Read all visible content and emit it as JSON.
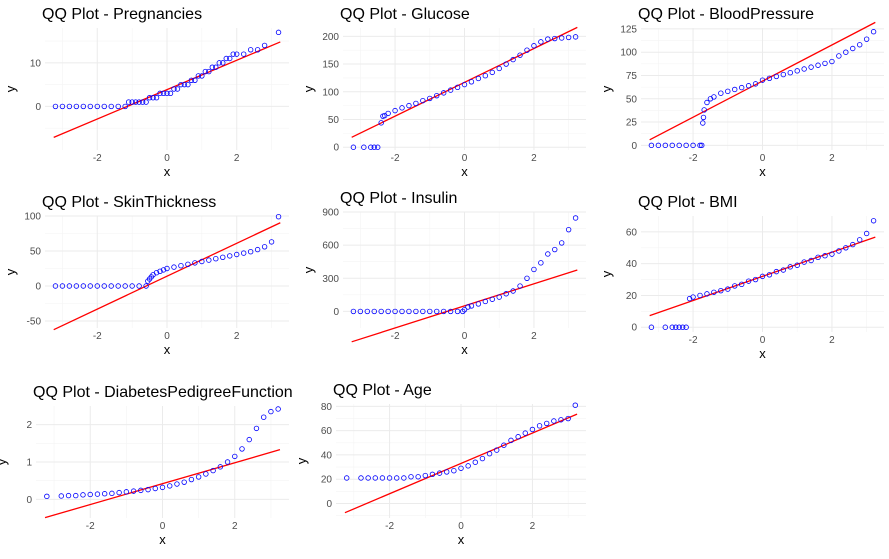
{
  "chart_data": [
    {
      "type": "scatter",
      "title": "QQ Plot - Pregnancies",
      "xlabel": "x",
      "ylabel": "y",
      "xlim": [
        -3.5,
        3.5
      ],
      "ylim": [
        -10,
        18
      ],
      "xticks": [
        -2,
        0,
        2
      ],
      "yticks": [
        0,
        10
      ],
      "line": {
        "slope": 3.37,
        "intercept": 3.85
      },
      "points": [
        [
          -3.2,
          0
        ],
        [
          -3.0,
          0
        ],
        [
          -2.8,
          0
        ],
        [
          -2.6,
          0
        ],
        [
          -2.4,
          0
        ],
        [
          -2.2,
          0
        ],
        [
          -2.0,
          0
        ],
        [
          -1.8,
          0
        ],
        [
          -1.6,
          0
        ],
        [
          -1.4,
          0
        ],
        [
          -1.2,
          0
        ],
        [
          -1.1,
          1
        ],
        [
          -1.0,
          1
        ],
        [
          -0.9,
          1
        ],
        [
          -0.8,
          1
        ],
        [
          -0.7,
          1
        ],
        [
          -0.6,
          1
        ],
        [
          -0.5,
          2
        ],
        [
          -0.4,
          2
        ],
        [
          -0.3,
          2
        ],
        [
          -0.2,
          3
        ],
        [
          -0.1,
          3
        ],
        [
          0.0,
          3
        ],
        [
          0.1,
          3
        ],
        [
          0.2,
          4
        ],
        [
          0.3,
          4
        ],
        [
          0.4,
          5
        ],
        [
          0.5,
          5
        ],
        [
          0.6,
          5
        ],
        [
          0.7,
          6
        ],
        [
          0.8,
          6
        ],
        [
          0.9,
          7
        ],
        [
          1.0,
          7
        ],
        [
          1.1,
          8
        ],
        [
          1.2,
          8
        ],
        [
          1.3,
          9
        ],
        [
          1.4,
          9
        ],
        [
          1.5,
          10
        ],
        [
          1.6,
          10
        ],
        [
          1.7,
          11
        ],
        [
          1.8,
          11
        ],
        [
          1.9,
          12
        ],
        [
          2.0,
          12
        ],
        [
          2.2,
          12
        ],
        [
          2.4,
          13
        ],
        [
          2.6,
          13
        ],
        [
          2.8,
          14
        ],
        [
          3.2,
          17
        ]
      ]
    },
    {
      "type": "scatter",
      "title": "QQ Plot - Glucose",
      "xlabel": "x",
      "ylabel": "y",
      "xlim": [
        -3.5,
        3.5
      ],
      "ylim": [
        -5,
        215
      ],
      "xticks": [
        -2,
        0,
        2
      ],
      "yticks": [
        0,
        50,
        100,
        150,
        200
      ],
      "line": {
        "slope": 30.5,
        "intercept": 117
      },
      "points": [
        [
          -3.2,
          0
        ],
        [
          -2.9,
          0
        ],
        [
          -2.7,
          0
        ],
        [
          -2.6,
          0
        ],
        [
          -2.5,
          0
        ],
        [
          -2.4,
          44
        ],
        [
          -2.35,
          56
        ],
        [
          -2.3,
          57
        ],
        [
          -2.2,
          61
        ],
        [
          -2.0,
          66
        ],
        [
          -1.8,
          71
        ],
        [
          -1.6,
          75
        ],
        [
          -1.4,
          79
        ],
        [
          -1.2,
          84
        ],
        [
          -1.0,
          88
        ],
        [
          -0.8,
          93
        ],
        [
          -0.6,
          98
        ],
        [
          -0.4,
          103
        ],
        [
          -0.2,
          108
        ],
        [
          0.0,
          113
        ],
        [
          0.2,
          118
        ],
        [
          0.4,
          124
        ],
        [
          0.6,
          129
        ],
        [
          0.8,
          135
        ],
        [
          1.0,
          142
        ],
        [
          1.2,
          150
        ],
        [
          1.4,
          158
        ],
        [
          1.6,
          166
        ],
        [
          1.8,
          175
        ],
        [
          2.0,
          183
        ],
        [
          2.2,
          190
        ],
        [
          2.4,
          195
        ],
        [
          2.6,
          196
        ],
        [
          2.8,
          197
        ],
        [
          3.0,
          198
        ],
        [
          3.2,
          199
        ]
      ]
    },
    {
      "type": "scatter",
      "title": "QQ Plot - BloodPressure",
      "xlabel": "x",
      "ylabel": "y",
      "xlim": [
        -3.5,
        3.5
      ],
      "ylim": [
        -5,
        126
      ],
      "xticks": [
        -2,
        0,
        2
      ],
      "yticks": [
        0,
        25,
        50,
        75,
        100,
        125
      ],
      "line": {
        "slope": 19.4,
        "intercept": 69
      },
      "points": [
        [
          -3.2,
          0
        ],
        [
          -3.0,
          0
        ],
        [
          -2.8,
          0
        ],
        [
          -2.6,
          0
        ],
        [
          -2.4,
          0
        ],
        [
          -2.2,
          0
        ],
        [
          -2.0,
          0
        ],
        [
          -1.8,
          0
        ],
        [
          -1.75,
          0
        ],
        [
          -1.72,
          24
        ],
        [
          -1.7,
          30
        ],
        [
          -1.68,
          38
        ],
        [
          -1.6,
          46
        ],
        [
          -1.5,
          50
        ],
        [
          -1.4,
          52
        ],
        [
          -1.2,
          56
        ],
        [
          -1.0,
          58
        ],
        [
          -0.8,
          60
        ],
        [
          -0.6,
          62
        ],
        [
          -0.4,
          64
        ],
        [
          -0.2,
          66
        ],
        [
          0.0,
          70
        ],
        [
          0.2,
          72
        ],
        [
          0.4,
          74
        ],
        [
          0.6,
          76
        ],
        [
          0.8,
          78
        ],
        [
          1.0,
          80
        ],
        [
          1.2,
          82
        ],
        [
          1.4,
          84
        ],
        [
          1.6,
          86
        ],
        [
          1.8,
          88
        ],
        [
          2.0,
          90
        ],
        [
          2.2,
          96
        ],
        [
          2.4,
          100
        ],
        [
          2.6,
          104
        ],
        [
          2.8,
          108
        ],
        [
          3.0,
          114
        ],
        [
          3.2,
          122
        ]
      ]
    },
    {
      "type": "scatter",
      "title": "QQ Plot - SkinThickness",
      "xlabel": "x",
      "ylabel": "y",
      "xlim": [
        -3.5,
        3.5
      ],
      "ylim": [
        -60,
        100
      ],
      "xticks": [
        -2,
        0,
        2
      ],
      "yticks": [
        -50,
        0,
        50,
        100
      ],
      "line": {
        "slope": 23.5,
        "intercept": 14
      },
      "points": [
        [
          -3.2,
          0
        ],
        [
          -3.0,
          0
        ],
        [
          -2.8,
          0
        ],
        [
          -2.6,
          0
        ],
        [
          -2.4,
          0
        ],
        [
          -2.2,
          0
        ],
        [
          -2.0,
          0
        ],
        [
          -1.8,
          0
        ],
        [
          -1.6,
          0
        ],
        [
          -1.4,
          0
        ],
        [
          -1.2,
          0
        ],
        [
          -1.0,
          0
        ],
        [
          -0.8,
          0
        ],
        [
          -0.6,
          0
        ],
        [
          -0.55,
          7
        ],
        [
          -0.5,
          10
        ],
        [
          -0.45,
          13
        ],
        [
          -0.4,
          16
        ],
        [
          -0.3,
          19
        ],
        [
          -0.2,
          21
        ],
        [
          -0.1,
          23
        ],
        [
          0.0,
          25
        ],
        [
          0.2,
          27
        ],
        [
          0.4,
          29
        ],
        [
          0.6,
          31
        ],
        [
          0.8,
          33
        ],
        [
          1.0,
          35
        ],
        [
          1.2,
          37
        ],
        [
          1.4,
          39
        ],
        [
          1.6,
          41
        ],
        [
          1.8,
          43
        ],
        [
          2.0,
          45
        ],
        [
          2.2,
          47
        ],
        [
          2.4,
          49
        ],
        [
          2.6,
          52
        ],
        [
          2.8,
          56
        ],
        [
          3.0,
          63
        ],
        [
          3.2,
          99
        ]
      ]
    },
    {
      "type": "scatter",
      "title": "QQ Plot - Insulin",
      "xlabel": "x",
      "ylabel": "y",
      "xlim": [
        -3.5,
        3.5
      ],
      "ylim": [
        -150,
        900
      ],
      "xticks": [
        -2,
        0,
        2
      ],
      "yticks": [
        0,
        300,
        600,
        900
      ],
      "line": {
        "slope": 100,
        "intercept": 50
      },
      "points": [
        [
          -3.2,
          0
        ],
        [
          -3.0,
          0
        ],
        [
          -2.8,
          0
        ],
        [
          -2.6,
          0
        ],
        [
          -2.4,
          0
        ],
        [
          -2.2,
          0
        ],
        [
          -2.0,
          0
        ],
        [
          -1.8,
          0
        ],
        [
          -1.6,
          0
        ],
        [
          -1.4,
          0
        ],
        [
          -1.2,
          0
        ],
        [
          -1.0,
          0
        ],
        [
          -0.8,
          0
        ],
        [
          -0.6,
          0
        ],
        [
          -0.4,
          0
        ],
        [
          -0.2,
          0
        ],
        [
          -0.05,
          0
        ],
        [
          0.0,
          15
        ],
        [
          0.1,
          40
        ],
        [
          0.2,
          50
        ],
        [
          0.4,
          68
        ],
        [
          0.6,
          90
        ],
        [
          0.8,
          110
        ],
        [
          1.0,
          130
        ],
        [
          1.2,
          160
        ],
        [
          1.4,
          185
        ],
        [
          1.6,
          230
        ],
        [
          1.8,
          300
        ],
        [
          2.0,
          380
        ],
        [
          2.2,
          440
        ],
        [
          2.4,
          520
        ],
        [
          2.6,
          560
        ],
        [
          2.8,
          620
        ],
        [
          3.0,
          740
        ],
        [
          3.2,
          846
        ]
      ]
    },
    {
      "type": "scatter",
      "title": "QQ Plot - BMI",
      "xlabel": "x",
      "ylabel": "y",
      "xlim": [
        -3.5,
        3.5
      ],
      "ylim": [
        -3,
        70
      ],
      "xticks": [
        -2,
        0,
        2
      ],
      "yticks": [
        0,
        20,
        40,
        60
      ],
      "line": {
        "slope": 7.6,
        "intercept": 32
      },
      "points": [
        [
          -3.2,
          0
        ],
        [
          -2.8,
          0
        ],
        [
          -2.6,
          0
        ],
        [
          -2.5,
          0
        ],
        [
          -2.4,
          0
        ],
        [
          -2.3,
          0
        ],
        [
          -2.2,
          0
        ],
        [
          -2.1,
          18
        ],
        [
          -2.0,
          19
        ],
        [
          -1.8,
          20
        ],
        [
          -1.6,
          21
        ],
        [
          -1.4,
          22
        ],
        [
          -1.2,
          23
        ],
        [
          -1.0,
          24
        ],
        [
          -0.8,
          26
        ],
        [
          -0.6,
          27
        ],
        [
          -0.4,
          29
        ],
        [
          -0.2,
          30
        ],
        [
          0.0,
          32
        ],
        [
          0.2,
          33
        ],
        [
          0.4,
          35
        ],
        [
          0.6,
          36
        ],
        [
          0.8,
          38
        ],
        [
          1.0,
          39
        ],
        [
          1.2,
          41
        ],
        [
          1.4,
          42
        ],
        [
          1.6,
          44
        ],
        [
          1.8,
          45
        ],
        [
          2.0,
          46
        ],
        [
          2.2,
          48
        ],
        [
          2.4,
          50
        ],
        [
          2.6,
          52
        ],
        [
          2.8,
          55
        ],
        [
          3.0,
          59
        ],
        [
          3.2,
          67
        ]
      ]
    },
    {
      "type": "scatter",
      "title": "QQ Plot - DiabetesPedigreeFunction",
      "xlabel": "x",
      "ylabel": "y",
      "xlim": [
        -3.5,
        3.5
      ],
      "ylim": [
        -0.5,
        2.5
      ],
      "xticks": [
        -2,
        0,
        2
      ],
      "yticks": [
        0,
        1,
        2
      ],
      "line": {
        "slope": 0.28,
        "intercept": 0.42
      },
      "points": [
        [
          -3.2,
          0.08
        ],
        [
          -2.8,
          0.09
        ],
        [
          -2.6,
          0.1
        ],
        [
          -2.4,
          0.1
        ],
        [
          -2.2,
          0.12
        ],
        [
          -2.0,
          0.13
        ],
        [
          -1.8,
          0.14
        ],
        [
          -1.6,
          0.15
        ],
        [
          -1.4,
          0.16
        ],
        [
          -1.2,
          0.18
        ],
        [
          -1.0,
          0.2
        ],
        [
          -0.8,
          0.22
        ],
        [
          -0.6,
          0.24
        ],
        [
          -0.4,
          0.26
        ],
        [
          -0.2,
          0.29
        ],
        [
          0.0,
          0.32
        ],
        [
          0.2,
          0.36
        ],
        [
          0.4,
          0.41
        ],
        [
          0.6,
          0.46
        ],
        [
          0.8,
          0.53
        ],
        [
          1.0,
          0.6
        ],
        [
          1.2,
          0.68
        ],
        [
          1.4,
          0.77
        ],
        [
          1.6,
          0.87
        ],
        [
          1.8,
          1.0
        ],
        [
          2.0,
          1.15
        ],
        [
          2.2,
          1.35
        ],
        [
          2.4,
          1.6
        ],
        [
          2.6,
          1.9
        ],
        [
          2.8,
          2.2
        ],
        [
          3.0,
          2.35
        ],
        [
          3.2,
          2.42
        ]
      ]
    },
    {
      "type": "scatter",
      "title": "QQ Plot - Age",
      "xlabel": "x",
      "ylabel": "y",
      "xlim": [
        -3.5,
        3.5
      ],
      "ylim": [
        -12,
        82
      ],
      "xticks": [
        -2,
        0,
        2
      ],
      "yticks": [
        0,
        20,
        40,
        60,
        80
      ],
      "line": {
        "slope": 12.5,
        "intercept": 33
      },
      "points": [
        [
          -3.2,
          21
        ],
        [
          -2.8,
          21
        ],
        [
          -2.6,
          21
        ],
        [
          -2.4,
          21
        ],
        [
          -2.2,
          21
        ],
        [
          -2.0,
          21
        ],
        [
          -1.8,
          21
        ],
        [
          -1.6,
          21
        ],
        [
          -1.4,
          22
        ],
        [
          -1.2,
          22
        ],
        [
          -1.0,
          23
        ],
        [
          -0.8,
          24
        ],
        [
          -0.6,
          25
        ],
        [
          -0.4,
          26
        ],
        [
          -0.2,
          27
        ],
        [
          0.0,
          29
        ],
        [
          0.2,
          31
        ],
        [
          0.4,
          34
        ],
        [
          0.6,
          37
        ],
        [
          0.8,
          41
        ],
        [
          1.0,
          44
        ],
        [
          1.2,
          48
        ],
        [
          1.4,
          52
        ],
        [
          1.6,
          55
        ],
        [
          1.8,
          58
        ],
        [
          2.0,
          61
        ],
        [
          2.2,
          64
        ],
        [
          2.4,
          66
        ],
        [
          2.6,
          68
        ],
        [
          2.8,
          69
        ],
        [
          3.0,
          70
        ],
        [
          3.2,
          81
        ]
      ]
    }
  ]
}
